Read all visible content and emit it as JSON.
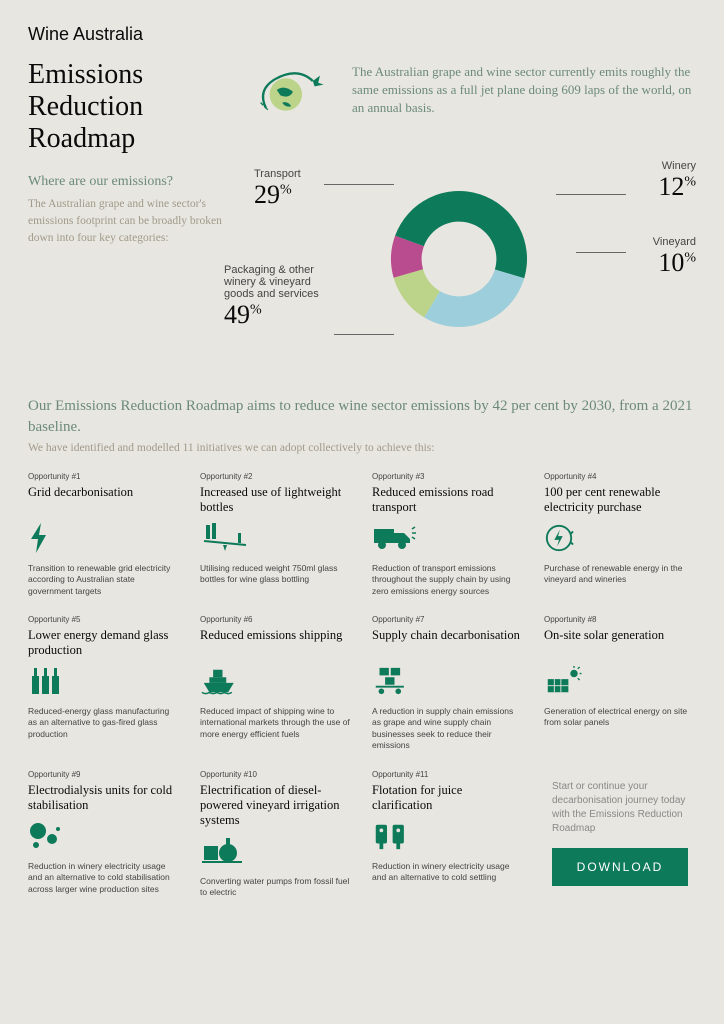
{
  "brand": "Wine Australia",
  "title": "Emissions Reduction Roadmap",
  "intro": "The Australian grape and wine sector currently emits roughly the same emissions as a full jet plane doing 609 laps of the world, on an annual basis.",
  "where_q": "Where are our emissions?",
  "where_sub": "The Australian grape and wine sector's emissions footprint can be broadly broken down into four key categories:",
  "colors": {
    "green": "#0d7a5a",
    "blue": "#9ccedb",
    "lime": "#bcd48a",
    "magenta": "#b94c8f",
    "muted": "#6b8a7a"
  },
  "donut": {
    "segments": [
      {
        "label": "Packaging & other winery & vineyard goods and services",
        "value": 49,
        "color": "#0d7a5a"
      },
      {
        "label": "Transport",
        "value": 29,
        "color": "#9ccedb"
      },
      {
        "label": "Winery",
        "value": 12,
        "color": "#bcd48a"
      },
      {
        "label": "Vineyard",
        "value": 10,
        "color": "#b94c8f"
      }
    ]
  },
  "lead1": "Our Emissions Reduction Roadmap aims to reduce wine sector emissions by 42 per cent by 2030, from a 2021 baseline.",
  "lead2": "We have identified and modelled 11 initiatives we can adopt collectively to achieve this:",
  "opps": [
    {
      "num": "Opportunity #1",
      "title": "Grid decarbonisation",
      "desc": "Transition to renewable grid electricity according to Australian state government targets",
      "icon": "bolt"
    },
    {
      "num": "Opportunity #2",
      "title": "Increased use of lightweight bottles",
      "desc": "Utilising reduced weight 750ml glass bottles for wine glass bottling",
      "icon": "seesaw"
    },
    {
      "num": "Opportunity #3",
      "title": "Reduced emissions road transport",
      "desc": "Reduction of transport emissions throughout the supply chain by using zero emissions energy sources",
      "icon": "truck"
    },
    {
      "num": "Opportunity #4",
      "title": "100 per cent renewable electricity purchase",
      "desc": "Purchase of renewable energy in the vineyard and wineries",
      "icon": "bolt-circle"
    },
    {
      "num": "Opportunity #5",
      "title": "Lower energy demand glass production",
      "desc": "Reduced-energy glass manufacturing as an alternative to gas-fired glass production",
      "icon": "bottles"
    },
    {
      "num": "Opportunity #6",
      "title": "Reduced emissions shipping",
      "desc": "Reduced impact of shipping wine to international markets through the use of more energy efficient fuels",
      "icon": "ship"
    },
    {
      "num": "Opportunity #7",
      "title": "Supply chain decarbonisation",
      "desc": "A reduction in supply chain emissions as grape and wine supply chain businesses seek to reduce their emissions",
      "icon": "trolley"
    },
    {
      "num": "Opportunity #8",
      "title": "On-site solar generation",
      "desc": "Generation of electrical energy on site from solar panels",
      "icon": "solar"
    },
    {
      "num": "Opportunity #9",
      "title": "Electrodialysis units for cold stabilisation",
      "desc": "Reduction in winery electricity usage and an alternative to cold stabilisation across larger wine production sites",
      "icon": "bubbles"
    },
    {
      "num": "Opportunity #10",
      "title": "Electrification of diesel-powered vineyard irrigation systems",
      "desc": "Converting water pumps from fossil fuel to electric",
      "icon": "pump"
    },
    {
      "num": "Opportunity #11",
      "title": "Flotation for juice clarification",
      "desc": "Reduction in winery electricity usage and an alternative to cold settling",
      "icon": "tanks"
    }
  ],
  "cta_text": "Start or continue your decarbonisation journey today with the Emissions Reduction Roadmap",
  "cta_btn": "DOWNLOAD"
}
